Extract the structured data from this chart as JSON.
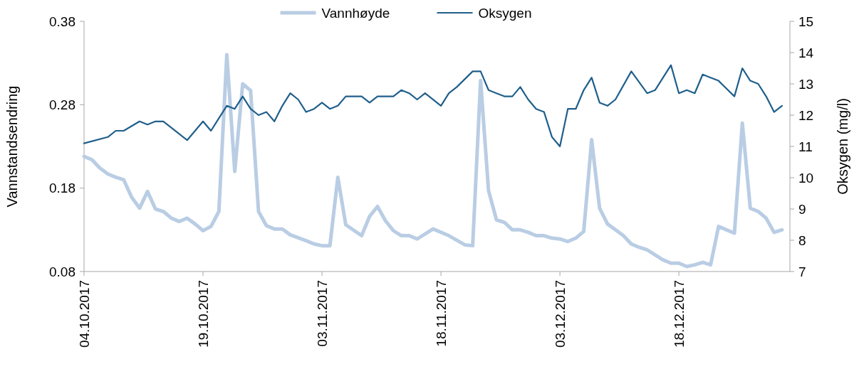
{
  "chart_data": {
    "type": "line",
    "ylabel": "Vannstandsendring",
    "y2label": "Oksygen (mg/l)",
    "legend": "top",
    "xlim": [
      "2017-10-04",
      "2018-01-01"
    ],
    "xticks": [
      {
        "value": "2017-10-04",
        "label": "04.10.2017"
      },
      {
        "value": "2017-10-19",
        "label": "19.10.2017"
      },
      {
        "value": "2017-11-03",
        "label": "03.11.2017"
      },
      {
        "value": "2017-11-18",
        "label": "18.11.2017"
      },
      {
        "value": "2017-12-03",
        "label": "03.12.2017"
      },
      {
        "value": "2017-12-18",
        "label": "18.12.2017"
      }
    ],
    "ylim": [
      0.08,
      0.38
    ],
    "yticks": [
      {
        "value": 0.08,
        "label": "0.08"
      },
      {
        "value": 0.18,
        "label": "0.18"
      },
      {
        "value": 0.28,
        "label": "0.28"
      },
      {
        "value": 0.38,
        "label": "0.38"
      }
    ],
    "y2lim": [
      7,
      15
    ],
    "y2ticks": [
      7,
      8,
      9,
      10,
      11,
      12,
      13,
      14,
      15
    ],
    "series": [
      {
        "name": "Vannhøyde",
        "color": "#b9cde4",
        "x": [
          "2017-10-04",
          "2017-10-05",
          "2017-10-06",
          "2017-10-07",
          "2017-10-08",
          "2017-10-09",
          "2017-10-10",
          "2017-10-11",
          "2017-10-12",
          "2017-10-13",
          "2017-10-14",
          "2017-10-15",
          "2017-10-16",
          "2017-10-17",
          "2017-10-18",
          "2017-10-19",
          "2017-10-20",
          "2017-10-21",
          "2017-10-22",
          "2017-10-23",
          "2017-10-24",
          "2017-10-25",
          "2017-10-26",
          "2017-10-27",
          "2017-10-28",
          "2017-10-29",
          "2017-10-30",
          "2017-11-01",
          "2017-11-02",
          "2017-11-03",
          "2017-11-04",
          "2017-11-05",
          "2017-11-06",
          "2017-11-08",
          "2017-11-09",
          "2017-11-10",
          "2017-11-11",
          "2017-11-12",
          "2017-11-13",
          "2017-11-14",
          "2017-11-15",
          "2017-11-17",
          "2017-11-19",
          "2017-11-21",
          "2017-11-22",
          "2017-11-23",
          "2017-11-24",
          "2017-11-25",
          "2017-11-26",
          "2017-11-27",
          "2017-11-28",
          "2017-11-29",
          "2017-11-30",
          "2017-12-01",
          "2017-12-02",
          "2017-12-03",
          "2017-12-04",
          "2017-12-05",
          "2017-12-06",
          "2017-12-07",
          "2017-12-08",
          "2017-12-09",
          "2017-12-10",
          "2017-12-11",
          "2017-12-12",
          "2017-12-13",
          "2017-12-14",
          "2017-12-15",
          "2017-12-16",
          "2017-12-17",
          "2017-12-18",
          "2017-12-19",
          "2017-12-20",
          "2017-12-21",
          "2017-12-22",
          "2017-12-23",
          "2017-12-24",
          "2017-12-25",
          "2017-12-26",
          "2017-12-27",
          "2017-12-28",
          "2017-12-29",
          "2017-12-30",
          "2017-12-31"
        ],
        "values": [
          0.218,
          0.214,
          0.204,
          0.197,
          0.193,
          0.19,
          0.169,
          0.156,
          0.176,
          0.155,
          0.152,
          0.144,
          0.14,
          0.144,
          0.137,
          0.129,
          0.134,
          0.152,
          0.34,
          0.2,
          0.305,
          0.297,
          0.152,
          0.135,
          0.131,
          0.131,
          0.124,
          0.117,
          0.113,
          0.111,
          0.111,
          0.193,
          0.136,
          0.123,
          0.146,
          0.158,
          0.141,
          0.129,
          0.123,
          0.123,
          0.119,
          0.131,
          0.123,
          0.112,
          0.111,
          0.309,
          0.177,
          0.142,
          0.139,
          0.13,
          0.13,
          0.127,
          0.123,
          0.123,
          0.12,
          0.119,
          0.116,
          0.12,
          0.128,
          0.238,
          0.156,
          0.137,
          0.13,
          0.123,
          0.113,
          0.109,
          0.106,
          0.1,
          0.094,
          0.09,
          0.09,
          0.086,
          0.088,
          0.091,
          0.088,
          0.134,
          0.13,
          0.126,
          0.258,
          0.156,
          0.152,
          0.144,
          0.127,
          0.13
        ]
      },
      {
        "name": "Oksygen",
        "color": "#1f5f8b",
        "axis": "y2",
        "x": [
          "2017-10-04",
          "2017-10-07",
          "2017-10-08",
          "2017-10-09",
          "2017-10-11",
          "2017-10-12",
          "2017-10-13",
          "2017-10-14",
          "2017-10-15",
          "2017-10-16",
          "2017-10-17",
          "2017-10-18",
          "2017-10-19",
          "2017-10-20",
          "2017-10-21",
          "2017-10-22",
          "2017-10-23",
          "2017-10-24",
          "2017-10-25",
          "2017-10-26",
          "2017-10-27",
          "2017-10-28",
          "2017-10-29",
          "2017-10-30",
          "2017-10-31",
          "2017-11-01",
          "2017-11-02",
          "2017-11-03",
          "2017-11-04",
          "2017-11-05",
          "2017-11-06",
          "2017-11-08",
          "2017-11-09",
          "2017-11-10",
          "2017-11-11",
          "2017-11-12",
          "2017-11-13",
          "2017-11-14",
          "2017-11-15",
          "2017-11-16",
          "2017-11-18",
          "2017-11-19",
          "2017-11-20",
          "2017-11-22",
          "2017-11-23",
          "2017-11-24",
          "2017-11-25",
          "2017-11-26",
          "2017-11-27",
          "2017-11-28",
          "2017-11-29",
          "2017-11-30",
          "2017-12-01",
          "2017-12-02",
          "2017-12-03",
          "2017-12-04",
          "2017-12-05",
          "2017-12-06",
          "2017-12-07",
          "2017-12-08",
          "2017-12-09",
          "2017-12-10",
          "2017-12-12",
          "2017-12-14",
          "2017-12-15",
          "2017-12-17",
          "2017-12-18",
          "2017-12-19",
          "2017-12-20",
          "2017-12-21",
          "2017-12-22",
          "2017-12-23",
          "2017-12-25",
          "2017-12-26",
          "2017-12-27",
          "2017-12-28",
          "2017-12-29",
          "2017-12-30",
          "2017-12-31"
        ],
        "values": [
          11.1,
          11.3,
          11.5,
          11.5,
          11.8,
          11.7,
          11.8,
          11.8,
          11.6,
          11.4,
          11.2,
          11.5,
          11.8,
          11.5,
          11.9,
          12.3,
          12.2,
          12.6,
          12.2,
          12.0,
          12.1,
          11.8,
          12.3,
          12.7,
          12.5,
          12.1,
          12.2,
          12.4,
          12.2,
          12.3,
          12.6,
          12.6,
          12.4,
          12.6,
          12.6,
          12.6,
          12.8,
          12.7,
          12.5,
          12.7,
          12.3,
          12.7,
          12.9,
          13.4,
          13.4,
          12.8,
          12.7,
          12.6,
          12.6,
          12.9,
          12.5,
          12.2,
          12.1,
          11.3,
          11.0,
          12.2,
          12.2,
          12.8,
          13.2,
          12.4,
          12.3,
          12.5,
          13.4,
          12.7,
          12.8,
          13.6,
          12.7,
          12.8,
          12.7,
          13.3,
          13.2,
          13.1,
          12.6,
          13.5,
          13.1,
          13.0,
          12.6,
          12.1,
          12.3
        ]
      }
    ]
  }
}
